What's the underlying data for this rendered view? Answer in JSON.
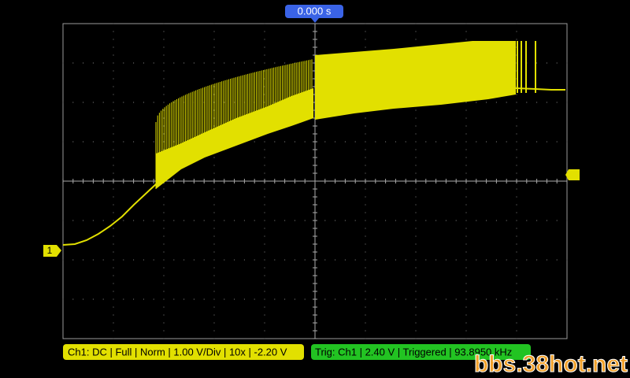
{
  "timebase": {
    "position": "0.000 s"
  },
  "channel_marker": "1",
  "status": {
    "channel": "Ch1: DC | Full | Norm | 1.00 V/Div | 10x | -2.20 V",
    "trigger": "Trig: Ch1 | 2.40 V | Triggered | 93.8950 kHz"
  },
  "watermark": "bbs.38hot.net"
}
